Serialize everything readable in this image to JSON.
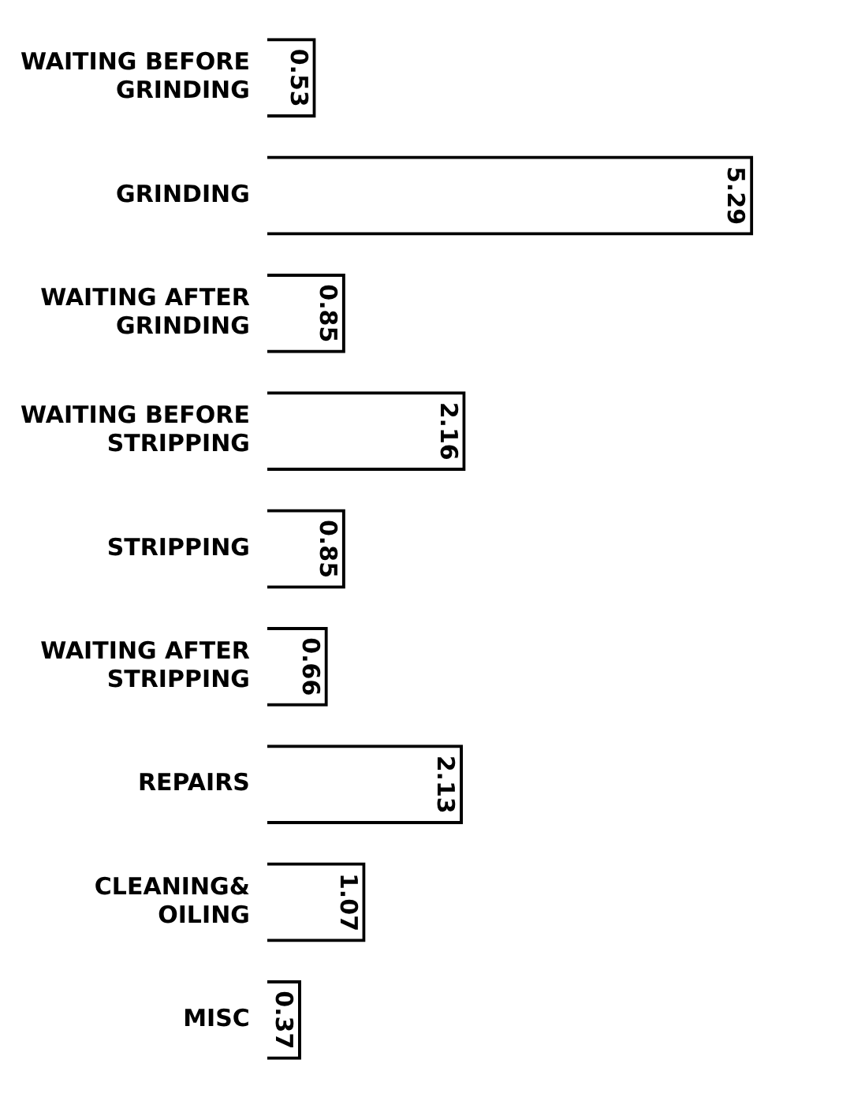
{
  "chart_data": {
    "type": "bar",
    "orientation": "horizontal",
    "categories": [
      "WAITING BEFORE GRINDING",
      "GRINDING",
      "WAITING AFTER GRINDING",
      "WAITING BEFORE STRIPPING",
      "STRIPPING",
      "WAITING AFTER STRIPPING",
      "REPAIRS",
      "CLEANING& OILING",
      "MISC"
    ],
    "values": [
      0.53,
      5.29,
      0.85,
      2.16,
      0.85,
      0.66,
      2.13,
      1.07,
      0.37
    ],
    "color": "#000000",
    "data_labels": true,
    "tick_labels": "y"
  }
}
